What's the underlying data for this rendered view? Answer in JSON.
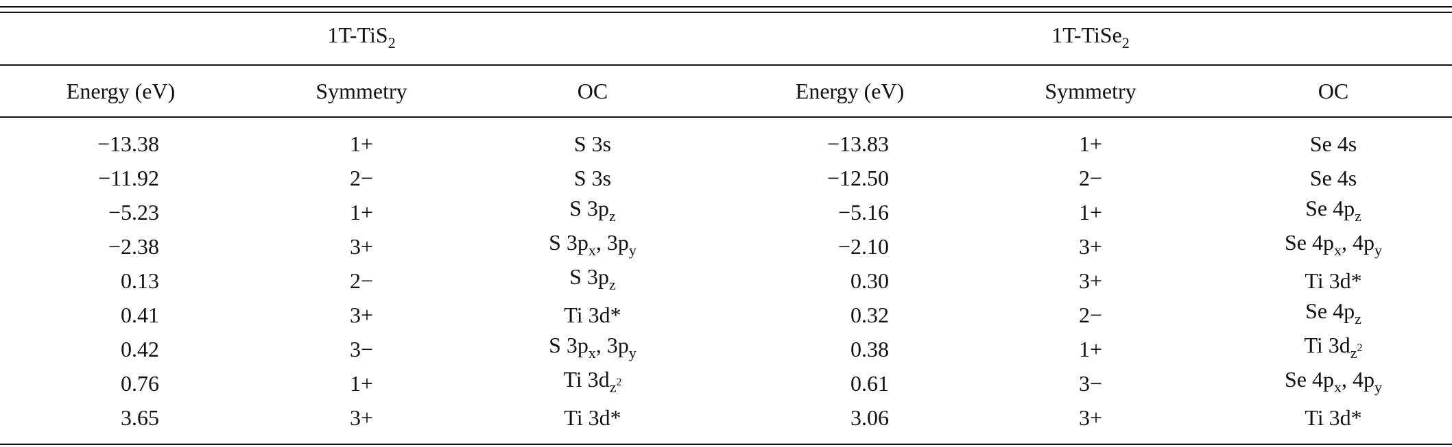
{
  "table": {
    "groups": [
      [
        "1T-TiS",
        {
          "sub": "2"
        }
      ],
      [
        "1T-TiSe",
        {
          "sub": "2"
        }
      ]
    ],
    "columns": [
      "Energy (eV)",
      "Symmetry",
      "OC",
      "Energy (eV)",
      "Symmetry",
      "OC"
    ],
    "rows": [
      [
        "−13.38",
        "1+",
        "S 3s",
        "−13.83",
        "1+",
        "Se 4s"
      ],
      [
        "−11.92",
        "2−",
        "S 3s",
        "−12.50",
        "2−",
        "Se 4s"
      ],
      [
        "−5.23",
        "1+",
        [
          "S 3p",
          {
            "sub": "z"
          }
        ],
        "−5.16",
        "1+",
        [
          "Se 4p",
          {
            "sub": "z"
          }
        ]
      ],
      [
        "−2.38",
        "3+",
        [
          "S 3p",
          {
            "sub": "x"
          },
          ", 3p",
          {
            "sub": "y"
          }
        ],
        "−2.10",
        "3+",
        [
          "Se 4p",
          {
            "sub": "x"
          },
          ", 4p",
          {
            "sub": "y"
          }
        ]
      ],
      [
        "0.13",
        "2−",
        [
          "S 3p",
          {
            "sub": "z"
          }
        ],
        "0.30",
        "3+",
        "Ti 3d*"
      ],
      [
        "0.41",
        "3+",
        "Ti 3d*",
        "0.32",
        "2−",
        [
          "Se 4p",
          {
            "sub": "z"
          }
        ]
      ],
      [
        "0.42",
        "3−",
        [
          "S 3p",
          {
            "sub": "x"
          },
          ", 3p",
          {
            "sub": "y"
          }
        ],
        "0.38",
        "1+",
        [
          "Ti 3d",
          {
            "sub": "z",
            "sup": "2"
          }
        ]
      ],
      [
        "0.76",
        "1+",
        [
          "Ti 3d",
          {
            "sub": "z",
            "sup": "2"
          }
        ],
        "0.61",
        "3−",
        [
          "Se 4p",
          {
            "sub": "x"
          },
          ", 4p",
          {
            "sub": "y"
          }
        ]
      ],
      [
        "3.65",
        "3+",
        "Ti 3d*",
        "3.06",
        "3+",
        "Ti 3d*"
      ]
    ]
  }
}
